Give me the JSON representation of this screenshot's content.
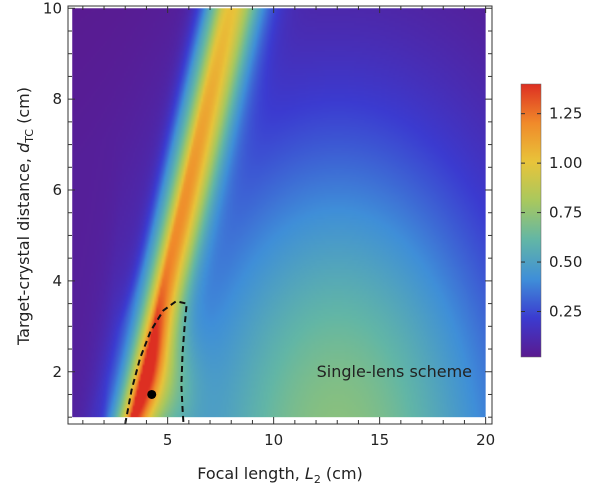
{
  "chart_data": {
    "type": "heatmap",
    "title": "",
    "xlabel": {
      "prefix": "Focal length, ",
      "var": "L",
      "sub": "2",
      "suffix": " (cm)"
    },
    "ylabel": {
      "prefix": "Target-crystal distance, ",
      "var": "d",
      "sub": "TC",
      "suffix": " (cm)"
    },
    "xlim": [
      0.3,
      20.3
    ],
    "ylim": [
      0.85,
      10.05
    ],
    "data_extent": {
      "x": [
        0.5,
        20
      ],
      "y": [
        1,
        10
      ]
    },
    "x_ticks": [
      {
        "value": 5,
        "label": "5"
      },
      {
        "value": 10,
        "label": "10"
      },
      {
        "value": 15,
        "label": "15"
      },
      {
        "value": 20,
        "label": "20"
      }
    ],
    "y_ticks": [
      {
        "value": 2,
        "label": "2"
      },
      {
        "value": 4,
        "label": "4"
      },
      {
        "value": 6,
        "label": "6"
      },
      {
        "value": 8,
        "label": "8"
      },
      {
        "value": 10,
        "label": "10"
      }
    ],
    "colorbar": {
      "range": [
        0.02,
        1.4
      ],
      "ticks": [
        {
          "value": 0.25,
          "label": "0.25"
        },
        {
          "value": 0.5,
          "label": "0.50"
        },
        {
          "value": 0.75,
          "label": "0.75"
        },
        {
          "value": 1.0,
          "label": "1.00"
        },
        {
          "value": 1.25,
          "label": "1.25"
        }
      ],
      "colormap": [
        "#5a1a8f",
        "#3b3bd0",
        "#3f8fd8",
        "#62b6a6",
        "#a8c85e",
        "#e8c43a",
        "#f08a2a",
        "#dd2f22"
      ]
    },
    "contour": {
      "style": "dashed",
      "points": [
        [
          3.0,
          0.85
        ],
        [
          3.3,
          1.6
        ],
        [
          3.7,
          2.3
        ],
        [
          4.2,
          2.9
        ],
        [
          4.8,
          3.35
        ],
        [
          5.4,
          3.55
        ],
        [
          5.9,
          3.5
        ],
        [
          5.8,
          3.0
        ],
        [
          5.7,
          2.4
        ],
        [
          5.65,
          1.7
        ],
        [
          5.7,
          1.2
        ],
        [
          5.75,
          0.85
        ]
      ]
    },
    "optimum_point": {
      "x": 4.25,
      "y": 1.5
    },
    "annotation": "Single-lens scheme"
  }
}
